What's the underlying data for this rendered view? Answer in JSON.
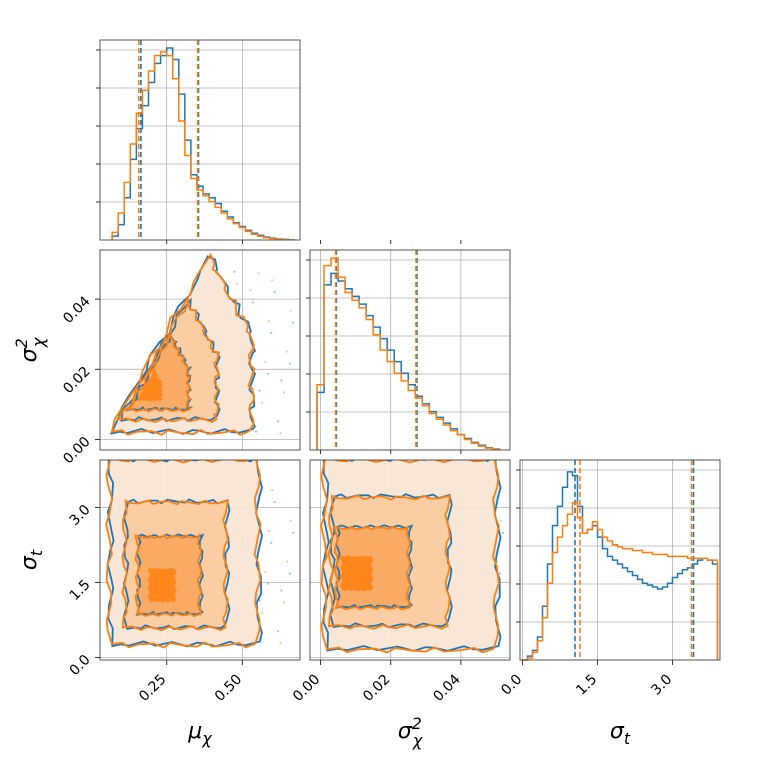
{
  "chart_data": {
    "type": "corner",
    "params": [
      {
        "key": "mu",
        "label": "μ",
        "sub": "χ",
        "sup": "",
        "range": [
          0.03,
          0.69
        ],
        "ticks": [
          0.25,
          0.5
        ],
        "tick_labels": [
          "0.25",
          "0.50"
        ]
      },
      {
        "key": "s2",
        "label": "σ",
        "sub": "χ",
        "sup": "2",
        "range": [
          -0.003,
          0.054
        ],
        "ticks": [
          0.0,
          0.02,
          0.04
        ],
        "tick_labels": [
          "0.00",
          "0.02",
          "0.04"
        ]
      },
      {
        "key": "st",
        "label": "σ",
        "sub": "t",
        "sup": "",
        "range": [
          -0.05,
          3.95
        ],
        "ticks": [
          0.0,
          1.5,
          3.0
        ],
        "tick_labels": [
          "0.0",
          "1.5",
          "3.0"
        ]
      }
    ],
    "grid": true,
    "series": [
      {
        "color": "#1f77b4",
        "quantiles": {
          "mu": [
            0.165,
            0.355
          ],
          "s2": [
            0.0045,
            0.0275
          ],
          "st": [
            1.05,
            3.42
          ]
        }
      },
      {
        "color": "#ff7f0e",
        "quantiles": {
          "mu": [
            0.158,
            0.352
          ],
          "s2": [
            0.0043,
            0.0272
          ],
          "st": [
            1.15,
            3.38
          ]
        }
      }
    ],
    "marginals": {
      "mu": {
        "x": [
          0.08,
          0.1,
          0.12,
          0.14,
          0.16,
          0.18,
          0.2,
          0.22,
          0.24,
          0.26,
          0.28,
          0.3,
          0.32,
          0.34,
          0.36,
          0.38,
          0.4,
          0.42,
          0.44,
          0.46,
          0.48,
          0.5,
          0.52,
          0.54,
          0.56,
          0.58,
          0.6,
          0.62,
          0.64,
          0.66
        ],
        "series": [
          [
            0.02,
            0.08,
            0.22,
            0.42,
            0.58,
            0.7,
            0.82,
            0.92,
            0.96,
            1.0,
            0.94,
            0.76,
            0.52,
            0.34,
            0.28,
            0.24,
            0.22,
            0.19,
            0.15,
            0.12,
            0.09,
            0.07,
            0.05,
            0.035,
            0.025,
            0.015,
            0.01,
            0.005,
            0.003,
            0.001
          ],
          [
            0.04,
            0.14,
            0.3,
            0.5,
            0.66,
            0.78,
            0.88,
            0.96,
            0.98,
            0.96,
            0.84,
            0.62,
            0.44,
            0.32,
            0.26,
            0.23,
            0.2,
            0.17,
            0.14,
            0.11,
            0.085,
            0.065,
            0.045,
            0.03,
            0.02,
            0.012,
            0.008,
            0.004,
            0.002,
            0.001
          ]
        ]
      },
      "s2": {
        "x": [
          0.0,
          0.002,
          0.004,
          0.006,
          0.008,
          0.01,
          0.012,
          0.014,
          0.016,
          0.018,
          0.02,
          0.022,
          0.024,
          0.026,
          0.028,
          0.03,
          0.032,
          0.034,
          0.036,
          0.038,
          0.04,
          0.042,
          0.044,
          0.046,
          0.048,
          0.05
        ],
        "series": [
          [
            0.3,
            0.86,
            0.92,
            0.88,
            0.84,
            0.8,
            0.76,
            0.7,
            0.64,
            0.58,
            0.52,
            0.46,
            0.4,
            0.34,
            0.28,
            0.24,
            0.2,
            0.17,
            0.14,
            0.11,
            0.08,
            0.06,
            0.04,
            0.025,
            0.012,
            0.005
          ],
          [
            0.34,
            0.96,
            1.0,
            0.9,
            0.82,
            0.78,
            0.74,
            0.68,
            0.6,
            0.52,
            0.46,
            0.4,
            0.36,
            0.31,
            0.27,
            0.23,
            0.19,
            0.16,
            0.13,
            0.1,
            0.08,
            0.055,
            0.035,
            0.02,
            0.01,
            0.004
          ]
        ]
      },
      "st": {
        "x": [
          0.05,
          0.15,
          0.25,
          0.35,
          0.45,
          0.55,
          0.65,
          0.75,
          0.85,
          0.95,
          1.05,
          1.15,
          1.25,
          1.35,
          1.45,
          1.55,
          1.65,
          1.75,
          1.85,
          1.95,
          2.05,
          2.15,
          2.25,
          2.35,
          2.45,
          2.55,
          2.65,
          2.75,
          2.85,
          2.95,
          3.05,
          3.15,
          3.25,
          3.35,
          3.45,
          3.55,
          3.65,
          3.75,
          3.85
        ],
        "series": [
          [
            0.0,
            0.02,
            0.05,
            0.12,
            0.28,
            0.5,
            0.7,
            0.8,
            0.9,
            0.98,
            0.96,
            0.8,
            0.66,
            0.68,
            0.7,
            0.64,
            0.58,
            0.54,
            0.52,
            0.5,
            0.48,
            0.46,
            0.44,
            0.42,
            0.4,
            0.39,
            0.38,
            0.37,
            0.38,
            0.4,
            0.43,
            0.45,
            0.47,
            0.48,
            0.5,
            0.52,
            0.53,
            0.52,
            0.5
          ],
          [
            0.0,
            0.01,
            0.04,
            0.1,
            0.22,
            0.4,
            0.56,
            0.64,
            0.7,
            0.76,
            0.82,
            0.74,
            0.66,
            0.68,
            0.72,
            0.68,
            0.64,
            0.62,
            0.6,
            0.59,
            0.58,
            0.58,
            0.57,
            0.57,
            0.56,
            0.56,
            0.55,
            0.55,
            0.55,
            0.54,
            0.54,
            0.54,
            0.54,
            0.53,
            0.53,
            0.53,
            0.53,
            0.52,
            0.52
          ]
        ]
      }
    },
    "joints": {
      "mu|s2": {
        "type": "triangle",
        "apex": [
          0.39,
          0.052
        ],
        "base_left": [
          0.06,
          0.002
        ],
        "base_right": [
          0.53,
          0.002
        ],
        "core": [
          0.17,
          0.013
        ],
        "series": [
          {
            "shift": [
              0.002,
              0.0003
            ]
          },
          {
            "shift": [
              0.0,
              0.0
            ]
          }
        ]
      },
      "mu|st": {
        "type": "band",
        "x_band": [
          0.06,
          0.55
        ],
        "y_band": [
          0.25,
          3.95
        ],
        "core": [
          0.22,
          1.3
        ],
        "series": [
          {
            "shift": [
              0.005,
              0.02
            ]
          },
          {
            "shift": [
              0.0,
              0.0
            ]
          }
        ]
      },
      "s2|st": {
        "type": "band",
        "x_band": [
          0.001,
          0.05
        ],
        "y_band": [
          0.15,
          3.95
        ],
        "core": [
          0.007,
          1.6
        ],
        "series": [
          {
            "shift": [
              0.0005,
              0.03
            ]
          },
          {
            "shift": [
              0.0,
              0.0
            ]
          }
        ]
      }
    }
  }
}
